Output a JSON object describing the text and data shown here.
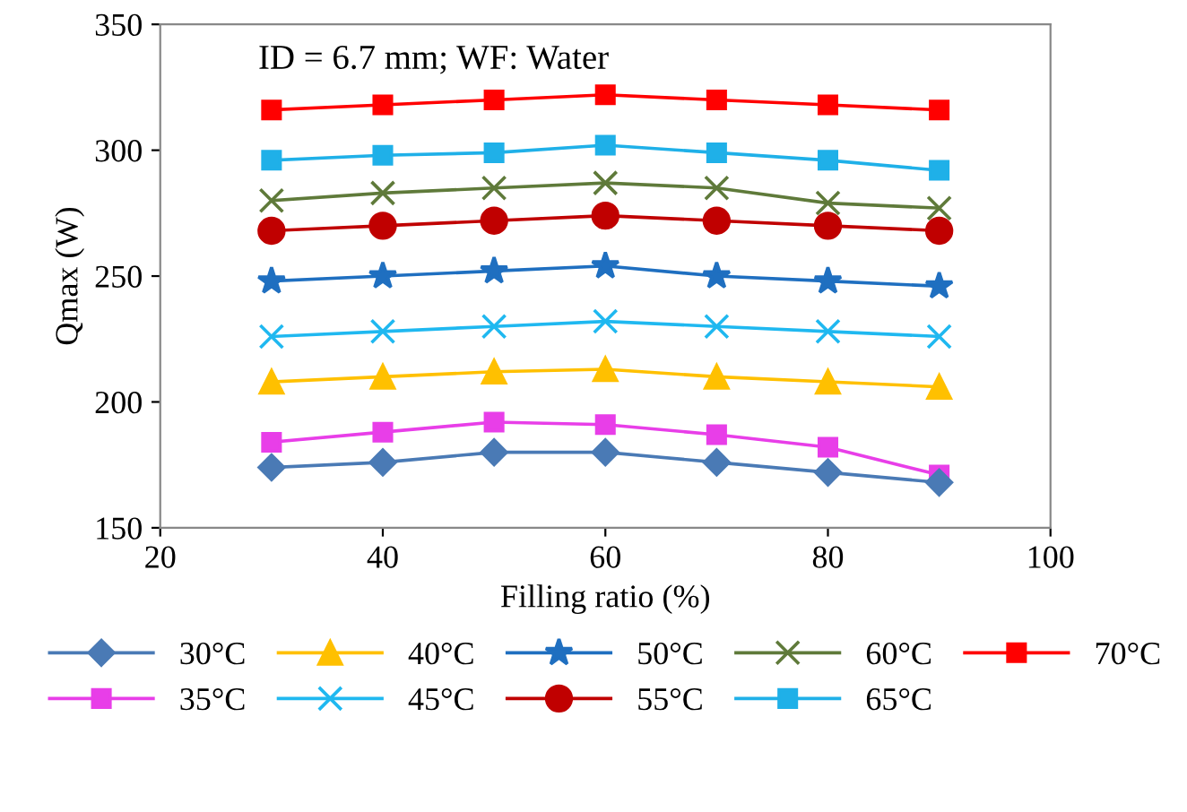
{
  "chart_data": {
    "type": "line",
    "xlabel": "Filling ratio (%)",
    "ylabel": "Qmax (W)",
    "annotations": [
      "ID = 6.7 mm; WF: Water"
    ],
    "x": [
      30,
      40,
      50,
      60,
      70,
      80,
      90
    ],
    "xlim": [
      20,
      100
    ],
    "xticks": [
      20,
      40,
      60,
      80,
      100
    ],
    "ylim": [
      150,
      350
    ],
    "yticks": [
      150,
      200,
      250,
      300,
      350
    ],
    "grid": false,
    "legend": "bottom",
    "series": [
      {
        "name": "30°C",
        "color": "#4a7ab5",
        "marker": "diamond",
        "values": [
          174,
          176,
          180,
          180,
          176,
          172,
          168
        ]
      },
      {
        "name": "35°C",
        "color": "#e83ee8",
        "marker": "square",
        "values": [
          184,
          188,
          192,
          191,
          187,
          182,
          171
        ]
      },
      {
        "name": "40°C",
        "color": "#ffc000",
        "marker": "triangle",
        "values": [
          208,
          210,
          212,
          213,
          210,
          208,
          206
        ]
      },
      {
        "name": "45°C",
        "color": "#1fb8f0",
        "marker": "cross",
        "values": [
          226,
          228,
          230,
          232,
          230,
          228,
          226
        ]
      },
      {
        "name": "50°C",
        "color": "#1f6fc0",
        "marker": "star",
        "values": [
          248,
          250,
          252,
          254,
          250,
          248,
          246
        ]
      },
      {
        "name": "55°C",
        "color": "#c00000",
        "marker": "circle",
        "values": [
          268,
          270,
          272,
          274,
          272,
          270,
          268
        ]
      },
      {
        "name": "60°C",
        "color": "#5f7a3a",
        "marker": "cross",
        "values": [
          280,
          283,
          285,
          287,
          285,
          279,
          277
        ]
      },
      {
        "name": "65°C",
        "color": "#1fb0e8",
        "marker": "square",
        "values": [
          296,
          298,
          299,
          302,
          299,
          296,
          292
        ]
      },
      {
        "name": "70°C",
        "color": "#ff0000",
        "marker": "square",
        "values": [
          316,
          318,
          320,
          322,
          320,
          318,
          316
        ]
      }
    ]
  }
}
